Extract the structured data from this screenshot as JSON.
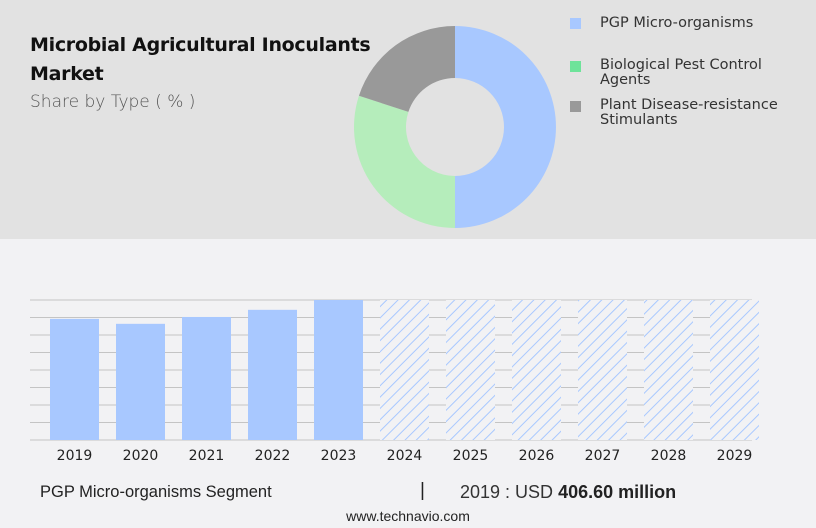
{
  "header": {
    "title": "Microbial Agricultural Inoculants Market",
    "subtitle": "Share by Type ( % )"
  },
  "legend": [
    {
      "label_line1": "PGP Micro-organisms",
      "label_line2": "",
      "color": "#a8c8ff"
    },
    {
      "label_line1": "Biological Pest Control",
      "label_line2": "Agents",
      "color": "#6ee39a"
    },
    {
      "label_line1": "Plant Disease-resistance",
      "label_line2": "Stimulants",
      "color": "#999999"
    }
  ],
  "footer": {
    "segment": "PGP Micro-organisms Segment",
    "divider": "|",
    "value_prefix": "2019 : USD ",
    "value_bold": "406.60 million",
    "url": "www.technavio.com"
  },
  "chart_data": [
    {
      "type": "pie",
      "subtype": "donut",
      "title": "Microbial Agricultural Inoculants Market",
      "subtitle": "Share by Type ( % )",
      "categories": [
        "PGP Micro-organisms",
        "Biological Pest Control Agents",
        "Plant Disease-resistance Stimulants"
      ],
      "values": [
        50,
        30,
        20
      ],
      "colors": [
        "#a8c8ff",
        "#b5edbb",
        "#999999"
      ],
      "legend_position": "right"
    },
    {
      "type": "bar",
      "title": "PGP Micro-organisms Segment",
      "categories": [
        "2019",
        "2020",
        "2021",
        "2022",
        "2023",
        "2024",
        "2025",
        "2026",
        "2027",
        "2028",
        "2029"
      ],
      "values": [
        406.6,
        390.0,
        413.0,
        437.0,
        470.0,
        null,
        null,
        null,
        null,
        null,
        null
      ],
      "forecast_placeholder": [
        false,
        false,
        false,
        false,
        false,
        true,
        true,
        true,
        true,
        true,
        true
      ],
      "xlabel": "",
      "ylabel": "",
      "ylim": [
        0,
        470
      ],
      "grid": true,
      "gridlines": 8,
      "bar_color": "#a8c8ff",
      "annotation": "2019 : USD 406.60 million"
    }
  ]
}
